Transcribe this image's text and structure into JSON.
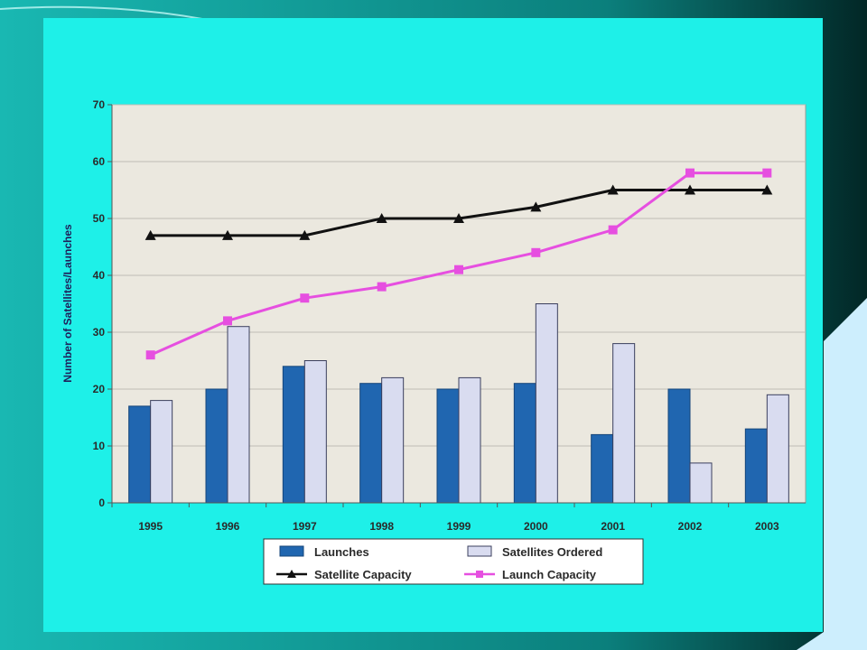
{
  "colors": {
    "panel": "#1ef0e8",
    "slide_background": "#0e8f8c",
    "plot_area": "#ebe8df",
    "gridline": "#bfbdb5",
    "launches": "#2066b0",
    "satellites_ordered": "#d9dcf0",
    "satellite_capacity": "#111111",
    "launch_capacity": "#e64fe0",
    "side_panel": "#cdeefd"
  },
  "chart_data": {
    "type": "bar",
    "ylabel": "Number of Satellites/Launches",
    "ylim": [
      0,
      70
    ],
    "yticks": [
      "0",
      "10",
      "20",
      "30",
      "40",
      "50",
      "60",
      "70"
    ],
    "grid": true,
    "legend_position": "bottom",
    "categories": [
      "1995",
      "1996",
      "1997",
      "1998",
      "1999",
      "2000",
      "2001",
      "2002",
      "2003"
    ],
    "bar_series": [
      {
        "name": "Launches",
        "values": [
          17,
          20,
          24,
          21,
          20,
          21,
          12,
          20,
          13
        ]
      },
      {
        "name": "Satellites Ordered",
        "values": [
          18,
          31,
          25,
          22,
          22,
          35,
          28,
          7,
          19
        ]
      }
    ],
    "line_series": [
      {
        "name": "Satellite Capacity",
        "marker": "triangle",
        "values": [
          47,
          47,
          47,
          50,
          50,
          52,
          55,
          55,
          55
        ]
      },
      {
        "name": "Launch Capacity",
        "marker": "square",
        "values": [
          26,
          32,
          36,
          38,
          41,
          44,
          48,
          58,
          58
        ]
      }
    ]
  }
}
